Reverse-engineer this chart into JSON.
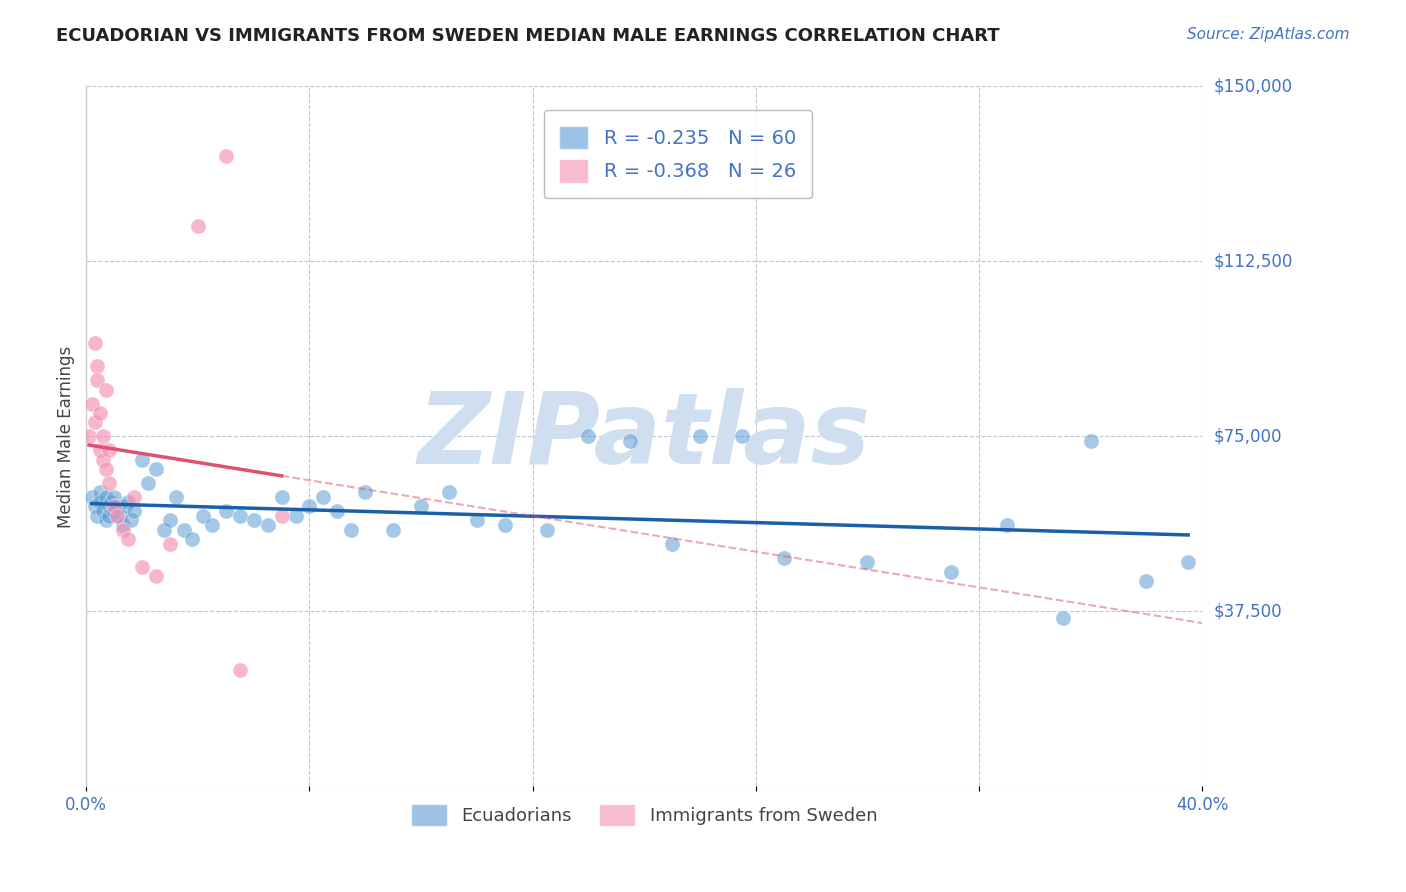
{
  "title": "ECUADORIAN VS IMMIGRANTS FROM SWEDEN MEDIAN MALE EARNINGS CORRELATION CHART",
  "source": "Source: ZipAtlas.com",
  "xlabel": "",
  "ylabel": "Median Male Earnings",
  "xlim": [
    0.0,
    0.4
  ],
  "ylim": [
    0,
    150000
  ],
  "yticks": [
    0,
    37500,
    75000,
    112500,
    150000
  ],
  "ytick_labels": [
    "",
    "$37,500",
    "$75,000",
    "$112,500",
    "$150,000"
  ],
  "xticks": [
    0.0,
    0.08,
    0.16,
    0.24,
    0.32,
    0.4
  ],
  "xtick_labels": [
    "0.0%",
    "",
    "",
    "",
    "",
    "40.0%"
  ],
  "legend1_color": "#6ea8d8",
  "legend2_color": "#f4a0b0",
  "R1": -0.235,
  "N1": 60,
  "R2": -0.368,
  "N2": 26,
  "blue_color": "#5b9bd5",
  "pink_color": "#f48fb1",
  "watermark": "ZIPatlas",
  "watermark_color": "#d0dff0",
  "blue_scatter_x": [
    0.002,
    0.003,
    0.004,
    0.005,
    0.005,
    0.006,
    0.007,
    0.007,
    0.008,
    0.008,
    0.009,
    0.01,
    0.01,
    0.011,
    0.012,
    0.013,
    0.014,
    0.015,
    0.016,
    0.017,
    0.02,
    0.022,
    0.025,
    0.028,
    0.03,
    0.032,
    0.035,
    0.038,
    0.042,
    0.045,
    0.05,
    0.055,
    0.06,
    0.065,
    0.07,
    0.075,
    0.08,
    0.085,
    0.09,
    0.095,
    0.1,
    0.11,
    0.12,
    0.13,
    0.14,
    0.15,
    0.165,
    0.18,
    0.195,
    0.21,
    0.22,
    0.235,
    0.25,
    0.28,
    0.31,
    0.33,
    0.35,
    0.36,
    0.38,
    0.395
  ],
  "blue_scatter_y": [
    62000,
    60000,
    58000,
    63000,
    61000,
    59000,
    57000,
    62000,
    60000,
    58000,
    61000,
    59000,
    62000,
    60000,
    58000,
    56000,
    60000,
    61000,
    57000,
    59000,
    70000,
    65000,
    68000,
    55000,
    57000,
    62000,
    55000,
    53000,
    58000,
    56000,
    59000,
    58000,
    57000,
    56000,
    62000,
    58000,
    60000,
    62000,
    59000,
    55000,
    63000,
    55000,
    60000,
    63000,
    57000,
    56000,
    55000,
    75000,
    74000,
    52000,
    75000,
    75000,
    49000,
    48000,
    46000,
    56000,
    36000,
    74000,
    44000,
    48000
  ],
  "pink_scatter_x": [
    0.001,
    0.002,
    0.003,
    0.003,
    0.004,
    0.004,
    0.005,
    0.005,
    0.006,
    0.006,
    0.007,
    0.007,
    0.008,
    0.008,
    0.01,
    0.011,
    0.013,
    0.015,
    0.017,
    0.02,
    0.025,
    0.03,
    0.04,
    0.05,
    0.055,
    0.07
  ],
  "pink_scatter_y": [
    75000,
    82000,
    78000,
    95000,
    90000,
    87000,
    72000,
    80000,
    70000,
    75000,
    85000,
    68000,
    65000,
    72000,
    60000,
    58000,
    55000,
    53000,
    62000,
    47000,
    45000,
    52000,
    120000,
    135000,
    25000,
    58000
  ]
}
